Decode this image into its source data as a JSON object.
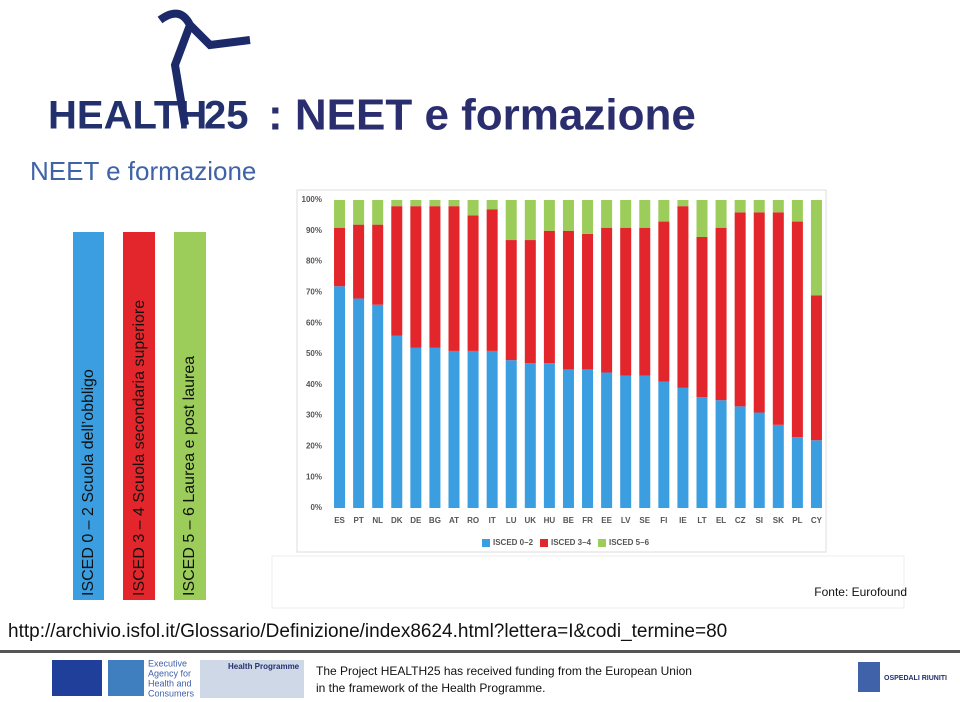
{
  "header": {
    "logo_word": "HEALTH",
    "logo_number": "25",
    "title": ": NEET e formazione",
    "subtitle": "NEET e formazione"
  },
  "levels": [
    "ISCED  0 – 2 Scuola dell’obbligo",
    "ISCED 3 – 4 Scuola secondaria superiore",
    "ISCED 5 – 6 Laurea e post laurea"
  ],
  "chart_data": {
    "type": "bar",
    "stacked": true,
    "categories": [
      "ES",
      "PT",
      "NL",
      "DK",
      "DE",
      "BG",
      "AT",
      "RO",
      "IT",
      "LU",
      "UK",
      "HU",
      "BE",
      "FR",
      "EE",
      "LV",
      "SE",
      "FI",
      "IE",
      "LT",
      "EL",
      "CZ",
      "SI",
      "SK",
      "PL",
      "CY"
    ],
    "series": [
      {
        "name": "ISCED 0–2",
        "color": "#3a9ee0",
        "values": [
          72,
          68,
          66,
          56,
          52,
          52,
          51,
          51,
          51,
          48,
          47,
          47,
          45,
          45,
          44,
          43,
          43,
          41,
          39,
          36,
          35,
          33,
          31,
          27,
          23,
          22
        ]
      },
      {
        "name": "ISCED 3–4",
        "color": "#e3262b",
        "values": [
          19,
          24,
          26,
          42,
          46,
          46,
          47,
          44,
          46,
          39,
          40,
          43,
          45,
          44,
          47,
          48,
          48,
          52,
          59,
          52,
          56,
          63,
          65,
          69,
          70,
          47
        ]
      },
      {
        "name": "ISCED 5–6",
        "color": "#9ccc5a",
        "values": [
          9,
          8,
          8,
          2,
          2,
          2,
          2,
          5,
          3,
          13,
          13,
          10,
          10,
          11,
          9,
          9,
          9,
          7,
          2,
          12,
          9,
          4,
          4,
          4,
          7,
          31
        ]
      }
    ],
    "ylim": [
      0,
      100
    ],
    "yticks": [
      {
        "value": 0,
        "label": "0%"
      },
      {
        "value": 10,
        "label": "10%"
      },
      {
        "value": 20,
        "label": "20%"
      },
      {
        "value": 30,
        "label": "30%"
      },
      {
        "value": 40,
        "label": "40%"
      },
      {
        "value": 50,
        "label": "50%"
      },
      {
        "value": 60,
        "label": "60%"
      },
      {
        "value": 70,
        "label": "70%"
      },
      {
        "value": 80,
        "label": "80%"
      },
      {
        "value": 90,
        "label": "90%"
      },
      {
        "value": 100,
        "label": "100%"
      }
    ],
    "source": "Fonte: Eurofound"
  },
  "link": "http://archivio.isfol.it/Glossario/Definizione/index8624.html?lettera=I&codi_termine=80",
  "footer": {
    "agency": [
      "Executive",
      "Agency for",
      "Health and",
      "Consumers"
    ],
    "programme": "Health Programme",
    "funding": [
      "The Project HEALTH25 has received funding from the European Union",
      "in the framework of the Health Programme."
    ],
    "hospital": "OSPEDALI RIUNITI"
  }
}
